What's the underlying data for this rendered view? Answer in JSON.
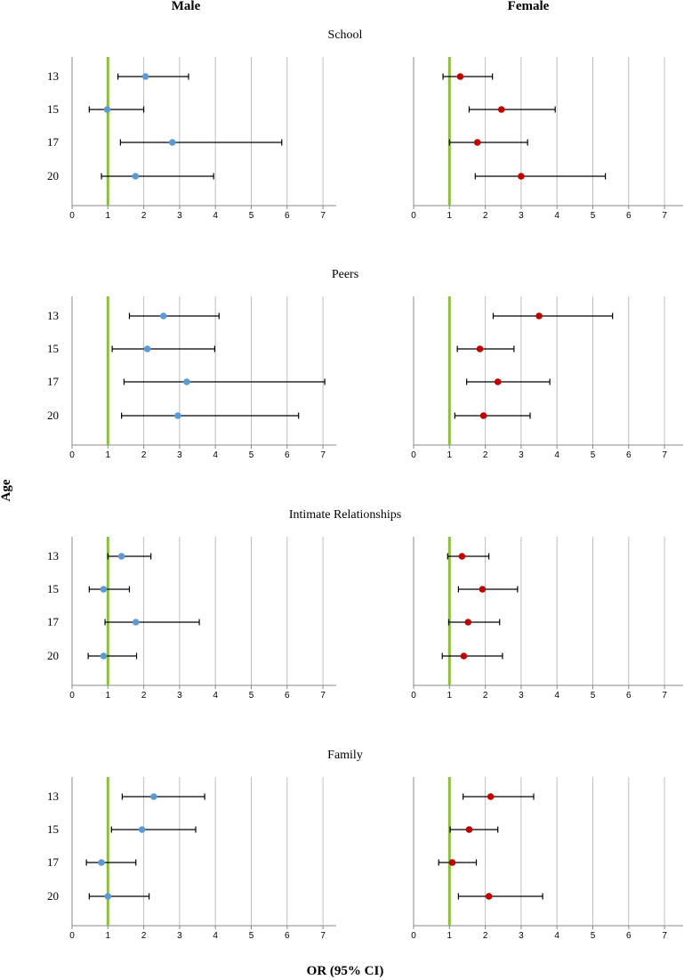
{
  "chart_data": {
    "type": "forest",
    "column_headers": [
      "Male",
      "Female"
    ],
    "ylabel": "Age",
    "xlabel": "OR (95% CI)",
    "xlim": [
      0,
      7.5
    ],
    "xticks": [
      0,
      1,
      2,
      3,
      4,
      5,
      6,
      7
    ],
    "reference_line": 1,
    "colors": {
      "male": "#5b9bd5",
      "female": "#c00000",
      "reference": "#8cbf3f",
      "grid": "#bfbfbf",
      "axis": "#888888"
    },
    "categories": [
      "13",
      "15",
      "17",
      "20"
    ],
    "panels": [
      {
        "title": "School",
        "male": [
          {
            "or": 2.05,
            "lo": 1.28,
            "hi": 3.25
          },
          {
            "or": 0.98,
            "lo": 0.48,
            "hi": 2.0
          },
          {
            "or": 2.8,
            "lo": 1.35,
            "hi": 5.85
          },
          {
            "or": 1.77,
            "lo": 0.82,
            "hi": 3.95
          }
        ],
        "female": [
          {
            "or": 1.3,
            "lo": 0.82,
            "hi": 2.2
          },
          {
            "or": 2.45,
            "lo": 1.55,
            "hi": 3.95
          },
          {
            "or": 1.78,
            "lo": 1.0,
            "hi": 3.18
          },
          {
            "or": 3.0,
            "lo": 1.72,
            "hi": 5.35
          }
        ]
      },
      {
        "title": "Peers",
        "male": [
          {
            "or": 2.55,
            "lo": 1.6,
            "hi": 4.1
          },
          {
            "or": 2.1,
            "lo": 1.12,
            "hi": 3.98
          },
          {
            "or": 3.2,
            "lo": 1.45,
            "hi": 7.05
          },
          {
            "or": 2.95,
            "lo": 1.38,
            "hi": 6.32
          }
        ],
        "female": [
          {
            "or": 3.5,
            "lo": 2.22,
            "hi": 5.55
          },
          {
            "or": 1.85,
            "lo": 1.22,
            "hi": 2.8
          },
          {
            "or": 2.35,
            "lo": 1.48,
            "hi": 3.8
          },
          {
            "or": 1.95,
            "lo": 1.15,
            "hi": 3.25
          }
        ]
      },
      {
        "title": "Intimate Relationships",
        "male": [
          {
            "or": 1.38,
            "lo": 1.0,
            "hi": 2.2
          },
          {
            "or": 0.88,
            "lo": 0.48,
            "hi": 1.6
          },
          {
            "or": 1.78,
            "lo": 0.92,
            "hi": 3.55
          },
          {
            "or": 0.88,
            "lo": 0.45,
            "hi": 1.8
          }
        ],
        "female": [
          {
            "or": 1.35,
            "lo": 0.95,
            "hi": 2.1
          },
          {
            "or": 1.92,
            "lo": 1.25,
            "hi": 2.9
          },
          {
            "or": 1.52,
            "lo": 0.98,
            "hi": 2.4
          },
          {
            "or": 1.4,
            "lo": 0.8,
            "hi": 2.48
          }
        ]
      },
      {
        "title": "Family",
        "male": [
          {
            "or": 2.28,
            "lo": 1.4,
            "hi": 3.7
          },
          {
            "or": 1.95,
            "lo": 1.1,
            "hi": 3.45
          },
          {
            "or": 0.82,
            "lo": 0.4,
            "hi": 1.78
          },
          {
            "or": 1.0,
            "lo": 0.48,
            "hi": 2.15
          }
        ],
        "female": [
          {
            "or": 2.15,
            "lo": 1.38,
            "hi": 3.35
          },
          {
            "or": 1.55,
            "lo": 1.02,
            "hi": 2.35
          },
          {
            "or": 1.08,
            "lo": 0.7,
            "hi": 1.75
          },
          {
            "or": 2.1,
            "lo": 1.25,
            "hi": 3.6
          }
        ]
      }
    ]
  }
}
